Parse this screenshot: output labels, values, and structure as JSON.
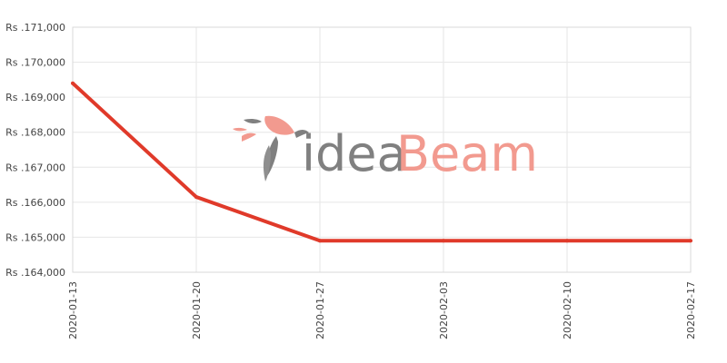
{
  "watermark": {
    "part1": "idea",
    "part2": "Beam",
    "color1": "#7a7a7a",
    "color2": "#f2958a"
  },
  "chart_data": {
    "type": "line",
    "x": [
      "2020-01-13",
      "2020-01-20",
      "2020-01-27",
      "2020-02-03",
      "2020-02-10",
      "2020-02-17"
    ],
    "y_ticks": [
      "Rs .164,000",
      "Rs .165,000",
      "Rs .166,000",
      "Rs .167,000",
      "Rs .168,000",
      "Rs .169,000",
      "Rs .170,000",
      "Rs .171,000"
    ],
    "ylim": [
      164000,
      171000
    ],
    "grid": true,
    "series": [
      {
        "color": "#e03a2a",
        "points": [
          {
            "x": "2020-01-13",
            "y": 169400
          },
          {
            "x": "2020-01-20",
            "y": 166150
          },
          {
            "x": "2020-01-27",
            "y": 164900
          },
          {
            "x": "2020-02-03",
            "y": 164900
          },
          {
            "x": "2020-02-10",
            "y": 164900
          },
          {
            "x": "2020-02-17",
            "y": 164900
          }
        ]
      }
    ]
  }
}
